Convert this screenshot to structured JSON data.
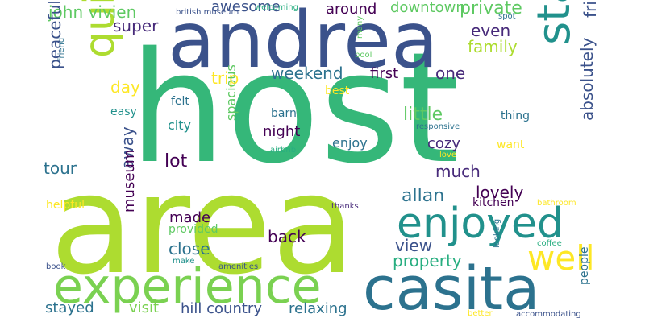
{
  "palette": {
    "dark_purple": "#440154",
    "indigo": "#472a7a",
    "blue": "#3b528b",
    "steel_blue": "#2c728e",
    "teal": "#21918c",
    "sea_green": "#28ae80",
    "green": "#5ec962",
    "lime": "#addc30",
    "yellow": "#fde725"
  },
  "words": {
    "host": "host",
    "area": "area",
    "andrea": "andrea",
    "casita": "casita",
    "experience": "experience",
    "enjoyed": "enjoyed",
    "staying": "staying",
    "quiet": "quiet",
    "well": "well",
    "john_vivien": "john vivien",
    "awesome": "awesome",
    "around": "around",
    "downtown": "downtown",
    "private": "private",
    "super": "super",
    "even": "even",
    "family": "family",
    "absolutely": "absolutely",
    "friendly": "friendly",
    "peaceful": "peaceful",
    "day": "day",
    "trip": "trip",
    "weekend": "weekend",
    "first": "first",
    "one": "one",
    "little": "little",
    "easy": "easy",
    "felt": "felt",
    "best": "best",
    "barn": "barn",
    "thing": "thing",
    "city": "city",
    "night": "night",
    "enjoy": "enjoy",
    "cozy": "cozy",
    "want": "want",
    "responsive": "responsive",
    "airbnb": "airbnb",
    "love": "love",
    "tour": "tour",
    "lot": "lot",
    "spacious": "spacious",
    "much": "much",
    "away": "away",
    "allan": "allan",
    "lovely": "lovely",
    "helpful": "helpful",
    "museum": "museum",
    "made": "made",
    "kitchen": "kitchen",
    "thanks": "thanks",
    "bathroom": "bathroom",
    "close": "close",
    "back": "back",
    "provided": "provided",
    "view": "view",
    "property": "property",
    "coffee": "coffee",
    "make": "make",
    "amenities": "amenities",
    "book": "book",
    "looking": "looking",
    "people": "people",
    "stayed": "stayed",
    "visit": "visit",
    "hill_country": "hill country",
    "relaxing": "relaxing",
    "better": "better",
    "accommodating": "accommodating",
    "british_museum": "british museum",
    "welcoming": "welcoming",
    "many": "many",
    "pool": "pool",
    "spot": "spot",
    "friend": "friend"
  }
}
